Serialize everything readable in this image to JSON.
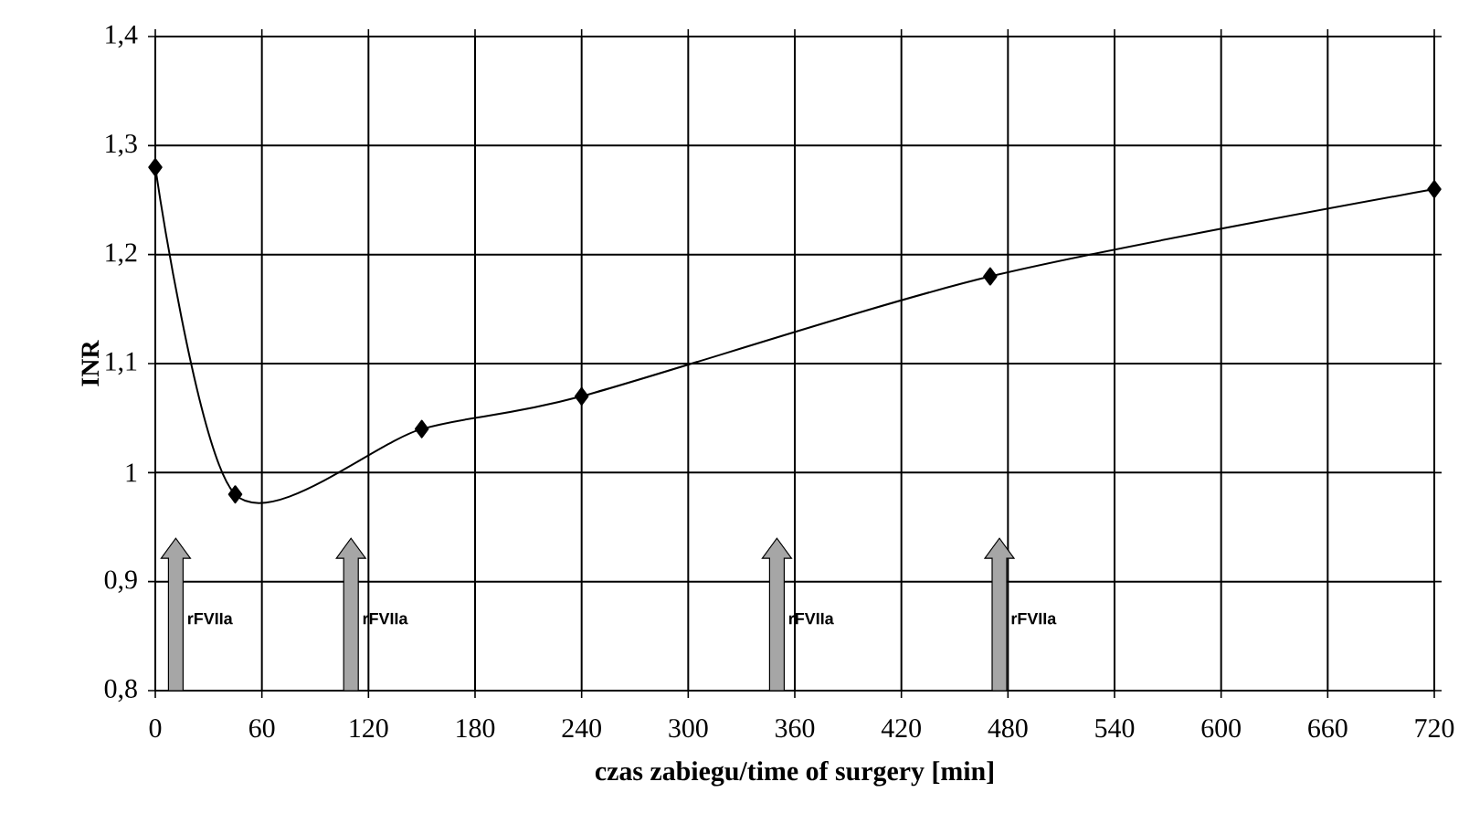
{
  "chart_data": {
    "type": "line",
    "xlabel": "czas zabiegu/time of surgery [min]",
    "ylabel": "INR",
    "x": [
      0,
      45,
      150,
      240,
      470,
      720
    ],
    "values": [
      1.28,
      0.98,
      1.04,
      1.07,
      1.18,
      1.26
    ],
    "color": "#000000",
    "marker": "diamond",
    "line_style": "solid",
    "xlim": [
      0,
      720
    ],
    "xticks": [
      0,
      60,
      120,
      180,
      240,
      300,
      360,
      420,
      480,
      540,
      600,
      660,
      720
    ],
    "ylim": [
      0.8,
      1.4
    ],
    "yticks": [
      {
        "value": 0.8,
        "label": "0,8"
      },
      {
        "value": 0.9,
        "label": "0,9"
      },
      {
        "value": 1,
        "label": "1"
      },
      {
        "value": 1.1,
        "label": "1,1"
      },
      {
        "value": 1.2,
        "label": "1,2"
      },
      {
        "value": 1.3,
        "label": "1,3"
      },
      {
        "value": 1.4,
        "label": "1,4"
      }
    ],
    "grid": true,
    "annotations": [
      "rFVIIa",
      "rFVIIa",
      "rFVIIa",
      "rFVIIa"
    ]
  }
}
